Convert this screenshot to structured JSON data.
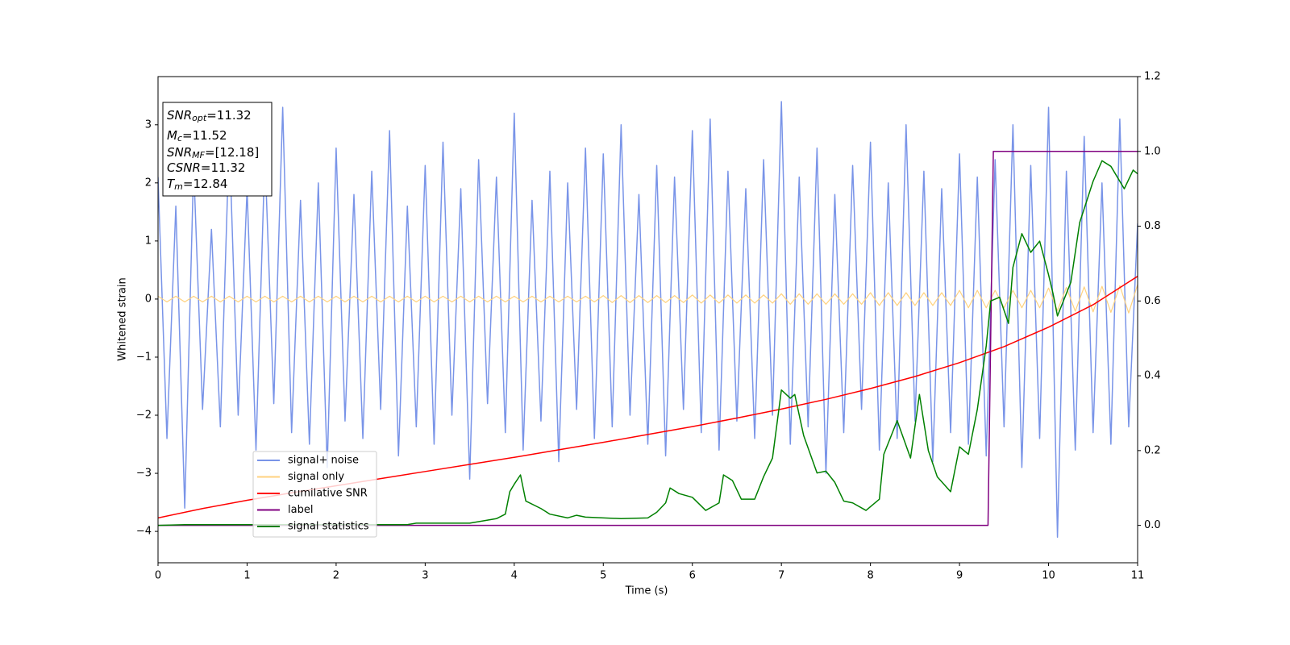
{
  "chart_data": {
    "type": "line",
    "xlabel": "Time (s)",
    "ylabel": "Whitened strain",
    "xlim": [
      0,
      11
    ],
    "ylim": [
      -4.54,
      3.83
    ],
    "y2lim": [
      -0.1,
      1.2
    ],
    "xticks": [
      0,
      1,
      2,
      3,
      4,
      5,
      6,
      7,
      8,
      9,
      10,
      11
    ],
    "yticks": [
      {
        "value": -4,
        "label": "−4"
      },
      {
        "value": -3,
        "label": "−3"
      },
      {
        "value": -2,
        "label": "−2"
      },
      {
        "value": -1,
        "label": "−1"
      },
      0,
      1,
      2,
      3
    ],
    "y2ticks": [
      {
        "value": 0,
        "label": "0.0"
      },
      {
        "value": 0.2,
        "label": "0.2"
      },
      {
        "value": 0.4,
        "label": "0.4"
      },
      {
        "value": 0.6,
        "label": "0.6"
      },
      {
        "value": 0.8,
        "label": "0.8"
      },
      {
        "value": 1,
        "label": "1.0"
      },
      {
        "value": 1.2,
        "label": "1.2"
      }
    ],
    "legend_loc": "lower left",
    "annotations": [
      {
        "math": "SNR",
        "sub": "opt",
        "text": "=11.32"
      },
      {
        "math": "M",
        "sub": "c",
        "text": "=11.52"
      },
      {
        "math": "SNR",
        "sub": "MF",
        "text": "=[12.18]"
      },
      {
        "math": "CSNR",
        "text": "=11.32"
      },
      {
        "math": "T",
        "sub": "m",
        "text": "=12.84"
      }
    ],
    "x": [
      0,
      0.1,
      0.2,
      0.3,
      0.4,
      0.5,
      0.6,
      0.7,
      0.8,
      0.9,
      1,
      1.1,
      1.2,
      1.3,
      1.4,
      1.5,
      1.6,
      1.7,
      1.8,
      1.9,
      2,
      2.1,
      2.2,
      2.3,
      2.4,
      2.5,
      2.6,
      2.7,
      2.8,
      2.9,
      3,
      3.1,
      3.2,
      3.3,
      3.4,
      3.5,
      3.6,
      3.7,
      3.8,
      3.9,
      4,
      4.1,
      4.2,
      4.3,
      4.4,
      4.5,
      4.6,
      4.7,
      4.8,
      4.9,
      5,
      5.1,
      5.2,
      5.3,
      5.4,
      5.5,
      5.6,
      5.7,
      5.8,
      5.9,
      6,
      6.1,
      6.2,
      6.3,
      6.4,
      6.5,
      6.6,
      6.7,
      6.8,
      6.9,
      7,
      7.1,
      7.2,
      7.3,
      7.4,
      7.5,
      7.6,
      7.7,
      7.8,
      7.9,
      8,
      8.1,
      8.2,
      8.3,
      8.4,
      8.5,
      8.6,
      8.7,
      8.8,
      8.9,
      9,
      9.1,
      9.2,
      9.3,
      9.4,
      9.5,
      9.6,
      9.7,
      9.8,
      9.9,
      10,
      10.1,
      10.2,
      10.3,
      10.4,
      10.5,
      10.6,
      10.7,
      10.8,
      10.9,
      11
    ],
    "series": [
      {
        "name": "signal+ noise",
        "color": "#7994e8",
        "values": [
          2.1,
          -2.4,
          1.6,
          -3.6,
          2.3,
          -1.9,
          1.2,
          -2.2,
          2.8,
          -2.0,
          1.9,
          -2.6,
          2.5,
          -1.8,
          3.3,
          -2.3,
          1.7,
          -2.5,
          2.0,
          -2.9,
          2.6,
          -2.1,
          1.8,
          -2.4,
          2.2,
          -1.9,
          2.9,
          -2.7,
          1.6,
          -2.2,
          2.3,
          -2.5,
          2.7,
          -2.0,
          1.9,
          -3.1,
          2.4,
          -1.8,
          2.1,
          -2.3,
          3.2,
          -2.6,
          1.7,
          -2.1,
          2.2,
          -2.8,
          2.0,
          -1.9,
          2.6,
          -2.4,
          2.5,
          -2.2,
          3.0,
          -2.0,
          1.8,
          -2.5,
          2.3,
          -2.7,
          2.1,
          -1.9,
          2.9,
          -2.3,
          3.1,
          -2.6,
          2.2,
          -2.1,
          1.9,
          -2.4,
          2.4,
          -2.0,
          3.4,
          -2.5,
          2.1,
          -2.2,
          2.6,
          -3.0,
          1.8,
          -2.3,
          2.3,
          -1.9,
          2.7,
          -2.6,
          2.0,
          -2.4,
          3.0,
          -2.1,
          2.2,
          -2.8,
          1.9,
          -2.3,
          2.5,
          -2.5,
          2.1,
          -2.7,
          2.4,
          -2.2,
          3.0,
          -2.9,
          2.3,
          -2.4,
          3.3,
          -4.1,
          2.2,
          -2.6,
          2.8,
          -2.3,
          2.0,
          -2.5,
          3.1,
          -2.2,
          1.3
        ]
      },
      {
        "name": "signal only",
        "color": "#ffd27f",
        "values": [
          0.05,
          -0.05,
          0.05,
          -0.05,
          0.05,
          -0.05,
          0.05,
          -0.05,
          0.05,
          -0.05,
          0.05,
          -0.05,
          0.05,
          -0.05,
          0.05,
          -0.05,
          0.05,
          -0.05,
          0.05,
          -0.05,
          0.05,
          -0.05,
          0.05,
          -0.05,
          0.05,
          -0.05,
          0.05,
          -0.05,
          0.05,
          -0.05,
          0.05,
          -0.05,
          0.05,
          -0.05,
          0.05,
          -0.05,
          0.05,
          -0.05,
          0.05,
          -0.05,
          0.05,
          -0.05,
          0.05,
          -0.05,
          0.05,
          -0.05,
          0.05,
          -0.05,
          0.05,
          -0.05,
          0.06,
          -0.06,
          0.06,
          -0.06,
          0.06,
          -0.06,
          0.06,
          -0.06,
          0.06,
          -0.06,
          0.07,
          -0.07,
          0.07,
          -0.07,
          0.07,
          -0.07,
          0.07,
          -0.07,
          0.07,
          -0.07,
          0.09,
          -0.09,
          0.09,
          -0.09,
          0.09,
          -0.09,
          0.09,
          -0.09,
          0.09,
          -0.09,
          0.11,
          -0.11,
          0.11,
          -0.11,
          0.11,
          -0.11,
          0.11,
          -0.11,
          0.11,
          -0.11,
          0.15,
          -0.15,
          0.15,
          -0.15,
          0.15,
          -0.15,
          0.15,
          -0.15,
          0.15,
          -0.15,
          0.19,
          -0.2,
          0.2,
          -0.21,
          0.21,
          -0.22,
          0.22,
          -0.23,
          0.23,
          -0.24,
          0.25
        ]
      },
      {
        "name": "cumilative SNR",
        "color": "#ff0000",
        "axis": "y2",
        "x": [
          0,
          0.5,
          1,
          1.5,
          2,
          2.5,
          3,
          3.5,
          4,
          4.5,
          5,
          5.5,
          6,
          6.5,
          7,
          7.5,
          8,
          8.5,
          9,
          9.5,
          10,
          10.5,
          11
        ],
        "values": [
          0.02,
          0.045,
          0.067,
          0.087,
          0.106,
          0.125,
          0.144,
          0.163,
          0.182,
          0.202,
          0.222,
          0.243,
          0.264,
          0.287,
          0.311,
          0.337,
          0.366,
          0.398,
          0.435,
          0.478,
          0.53,
          0.59,
          0.666
        ]
      },
      {
        "name": "label",
        "color": "#800080",
        "axis": "y2",
        "x": [
          0,
          9.32,
          9.38,
          11
        ],
        "values": [
          0,
          0,
          1,
          1
        ]
      },
      {
        "name": "signal statistics",
        "color": "#008000",
        "axis": "y2",
        "x": [
          0,
          0.3,
          2.8,
          2.9,
          3.5,
          3.8,
          3.9,
          3.95,
          4.0,
          4.07,
          4.13,
          4.3,
          4.4,
          4.6,
          4.7,
          4.8,
          5.2,
          5.5,
          5.6,
          5.7,
          5.75,
          5.85,
          6.0,
          6.15,
          6.3,
          6.35,
          6.45,
          6.55,
          6.7,
          6.8,
          6.9,
          7.0,
          7.1,
          7.15,
          7.25,
          7.4,
          7.5,
          7.6,
          7.7,
          7.8,
          7.95,
          8.1,
          8.15,
          8.3,
          8.45,
          8.55,
          8.65,
          8.75,
          8.9,
          9.0,
          9.1,
          9.2,
          9.3,
          9.35,
          9.45,
          9.55,
          9.6,
          9.7,
          9.8,
          9.9,
          10.0,
          10.05,
          10.1,
          10.25,
          10.35,
          10.5,
          10.6,
          10.7,
          10.85,
          10.95,
          11.0
        ],
        "values": [
          0,
          0.002,
          0.002,
          0.006,
          0.006,
          0.018,
          0.03,
          0.09,
          0.11,
          0.135,
          0.065,
          0.045,
          0.03,
          0.02,
          0.027,
          0.022,
          0.018,
          0.02,
          0.035,
          0.06,
          0.1,
          0.085,
          0.075,
          0.04,
          0.06,
          0.135,
          0.12,
          0.07,
          0.07,
          0.13,
          0.18,
          0.362,
          0.34,
          0.35,
          0.24,
          0.14,
          0.145,
          0.115,
          0.065,
          0.06,
          0.04,
          0.07,
          0.19,
          0.28,
          0.18,
          0.35,
          0.2,
          0.13,
          0.09,
          0.21,
          0.19,
          0.31,
          0.48,
          0.6,
          0.61,
          0.54,
          0.69,
          0.78,
          0.73,
          0.76,
          0.67,
          0.62,
          0.56,
          0.65,
          0.81,
          0.92,
          0.975,
          0.96,
          0.9,
          0.95,
          0.94
        ]
      }
    ]
  }
}
